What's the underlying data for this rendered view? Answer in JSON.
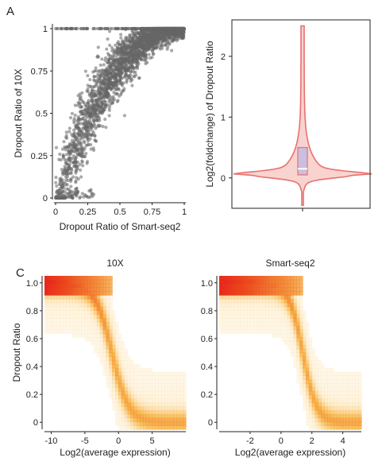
{
  "panels": {
    "A": {
      "label": "A"
    },
    "C": {
      "label": "C"
    }
  },
  "chart_data": [
    {
      "id": "scatter",
      "type": "scatter",
      "xlabel": "Dropout Ratio of Smart-seq2",
      "ylabel": "Dropout Ratio of 10X",
      "xlim": [
        0,
        1
      ],
      "ylim": [
        0,
        1
      ],
      "xticks": [
        {
          "value": 0,
          "label": "0"
        },
        {
          "value": 0.25,
          "label": "0.25"
        },
        {
          "value": 0.5,
          "label": "0.5"
        },
        {
          "value": 0.75,
          "label": "0.75"
        },
        {
          "value": 1,
          "label": "1"
        }
      ],
      "yticks": [
        {
          "value": 0,
          "label": "0"
        },
        {
          "value": 0.25,
          "label": "0.25"
        },
        {
          "value": 0.5,
          "label": "0.5"
        },
        {
          "value": 0.75,
          "label": "0.75"
        },
        {
          "value": 1,
          "label": "1"
        }
      ],
      "point_color": "#666666",
      "grid": false
    },
    {
      "id": "violin",
      "type": "violin",
      "ylabel": "Log2(foldchange) of Dropout Ratio",
      "ylim": [
        -0.5,
        2.6
      ],
      "yticks": [
        {
          "value": 0,
          "label": "0"
        },
        {
          "value": 1,
          "label": "1"
        },
        {
          "value": 2,
          "label": "2"
        }
      ],
      "distribution": {
        "min": -0.45,
        "q1": 0.05,
        "median": 0.15,
        "q3": 0.5,
        "max": 2.5,
        "mode": 0.05
      },
      "fill_color": "#f8d3d0",
      "line_color": "#e8716d",
      "box_color": "#c9bfe0"
    },
    {
      "id": "density-10x",
      "type": "heatmap",
      "title": "10X",
      "xlabel": "Log2(average expression)",
      "ylabel": "Dropout Ratio",
      "xlim": [
        -11,
        10
      ],
      "ylim": [
        -0.05,
        1.05
      ],
      "xticks": [
        {
          "value": -10,
          "label": "-10"
        },
        {
          "value": -5,
          "label": "-5"
        },
        {
          "value": 0,
          "label": "0"
        },
        {
          "value": 5,
          "label": "5"
        }
      ],
      "yticks": [
        {
          "value": 0,
          "label": "0"
        },
        {
          "value": 0.2,
          "label": "0.2"
        },
        {
          "value": 0.4,
          "label": "0.4"
        },
        {
          "value": 0.6,
          "label": "0.6"
        },
        {
          "value": 0.8,
          "label": "0.8"
        },
        {
          "value": 1,
          "label": "1.0"
        }
      ],
      "curve": {
        "midpoint": -1,
        "scale": 1.25
      },
      "colors": {
        "low": "#fde3b0",
        "mid": "#f5a623",
        "high": "#e8291c"
      }
    },
    {
      "id": "density-smartseq2",
      "type": "heatmap",
      "title": "Smart-seq2",
      "xlabel": "Log2(average expression)",
      "ylabel": "",
      "xlim": [
        -4,
        5.2
      ],
      "ylim": [
        -0.05,
        1.05
      ],
      "xticks": [
        {
          "value": -2,
          "label": "-2"
        },
        {
          "value": 0,
          "label": "0"
        },
        {
          "value": 2,
          "label": "2"
        },
        {
          "value": 4,
          "label": "4"
        }
      ],
      "yticks": [
        {
          "value": 0,
          "label": "0"
        },
        {
          "value": 0.2,
          "label": "0.2"
        },
        {
          "value": 0.4,
          "label": "0.4"
        },
        {
          "value": 0.6,
          "label": "0.6"
        },
        {
          "value": 0.8,
          "label": "0.8"
        },
        {
          "value": 1,
          "label": "1.0"
        }
      ],
      "curve": {
        "midpoint": 1.4,
        "scale": 0.45
      },
      "colors": {
        "low": "#fde3b0",
        "mid": "#f5a623",
        "high": "#e8291c"
      }
    }
  ]
}
